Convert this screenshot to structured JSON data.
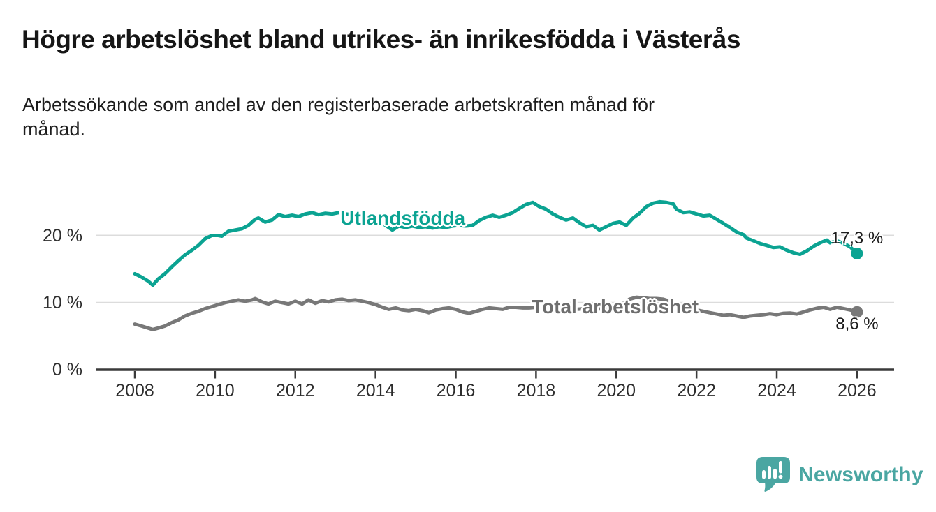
{
  "header": {
    "title": "Högre arbetslöshet bland utrikes- än inrikesfödda i Västerås",
    "subtitle_lines": [
      "Arbetssökande som andel av den registerbaserade arbetskraften månad för",
      "månad."
    ]
  },
  "theme": {
    "teal": "#0ba392",
    "gray": "#787878",
    "gray_label": "#6e6e6e",
    "gridline": "#dcdcdc",
    "axis": "#3a3a3a",
    "text_dark": "#1d1d1d",
    "logo_teal": "#4aa6a2"
  },
  "footer": {
    "brand": "Newsworthy",
    "logo_icon": "bar-chart-speech-bubble-icon"
  },
  "chart_data": {
    "type": "line",
    "unit": "%",
    "grid": true,
    "x_axis": {
      "base_year": 2008,
      "ticks": [
        2008,
        2010,
        2012,
        2014,
        2016,
        2018,
        2020,
        2022,
        2024,
        2026
      ],
      "range": [
        2007,
        2026.9
      ]
    },
    "y_axis": {
      "ticks": [
        {
          "value": 0,
          "label": "0 %"
        },
        {
          "value": 10,
          "label": "10 %"
        },
        {
          "value": 20,
          "label": "20 %"
        }
      ],
      "gridlines": [
        10,
        20
      ],
      "range": [
        0,
        27
      ]
    },
    "series": [
      {
        "id": "utlandsfodda",
        "name": "Utlandsfödda",
        "color": "#0ba392",
        "label_at": [
          2014.68,
          22.5
        ],
        "end_label": "17,3 %",
        "end_value": 17.3,
        "end_label_side": "above",
        "points": [
          [
            2008.0,
            14.3
          ],
          [
            2008.17,
            13.8
          ],
          [
            2008.33,
            13.2
          ],
          [
            2008.45,
            12.6
          ],
          [
            2008.58,
            13.5
          ],
          [
            2008.75,
            14.3
          ],
          [
            2008.92,
            15.3
          ],
          [
            2009.08,
            16.2
          ],
          [
            2009.25,
            17.1
          ],
          [
            2009.42,
            17.8
          ],
          [
            2009.58,
            18.5
          ],
          [
            2009.75,
            19.5
          ],
          [
            2009.92,
            20.0
          ],
          [
            2010.08,
            20.0
          ],
          [
            2010.17,
            19.9
          ],
          [
            2010.33,
            20.6
          ],
          [
            2010.5,
            20.8
          ],
          [
            2010.67,
            21.0
          ],
          [
            2010.83,
            21.5
          ],
          [
            2011.0,
            22.4
          ],
          [
            2011.08,
            22.6
          ],
          [
            2011.25,
            22.0
          ],
          [
            2011.42,
            22.3
          ],
          [
            2011.58,
            23.1
          ],
          [
            2011.75,
            22.8
          ],
          [
            2011.92,
            23.0
          ],
          [
            2012.08,
            22.8
          ],
          [
            2012.25,
            23.2
          ],
          [
            2012.42,
            23.4
          ],
          [
            2012.58,
            23.1
          ],
          [
            2012.75,
            23.3
          ],
          [
            2012.92,
            23.2
          ],
          [
            2013.08,
            23.4
          ],
          [
            2013.25,
            23.2
          ],
          [
            2013.42,
            23.1
          ],
          [
            2013.58,
            22.9
          ],
          [
            2013.75,
            22.7
          ],
          [
            2013.92,
            22.5
          ],
          [
            2014.08,
            22.2
          ],
          [
            2014.25,
            21.5
          ],
          [
            2014.42,
            20.8
          ],
          [
            2014.58,
            21.4
          ],
          [
            2014.75,
            21.2
          ],
          [
            2014.92,
            21.4
          ],
          [
            2015.08,
            21.2
          ],
          [
            2015.25,
            21.3
          ],
          [
            2015.42,
            21.1
          ],
          [
            2015.58,
            21.3
          ],
          [
            2015.75,
            21.2
          ],
          [
            2015.92,
            21.4
          ],
          [
            2016.08,
            21.5
          ],
          [
            2016.25,
            21.4
          ],
          [
            2016.42,
            21.5
          ],
          [
            2016.58,
            22.2
          ],
          [
            2016.75,
            22.7
          ],
          [
            2016.92,
            23.0
          ],
          [
            2017.08,
            22.7
          ],
          [
            2017.25,
            23.0
          ],
          [
            2017.42,
            23.4
          ],
          [
            2017.58,
            24.0
          ],
          [
            2017.75,
            24.6
          ],
          [
            2017.92,
            24.9
          ],
          [
            2018.08,
            24.3
          ],
          [
            2018.25,
            23.9
          ],
          [
            2018.42,
            23.2
          ],
          [
            2018.58,
            22.7
          ],
          [
            2018.75,
            22.3
          ],
          [
            2018.92,
            22.6
          ],
          [
            2019.08,
            21.9
          ],
          [
            2019.25,
            21.3
          ],
          [
            2019.42,
            21.5
          ],
          [
            2019.58,
            20.8
          ],
          [
            2019.75,
            21.3
          ],
          [
            2019.92,
            21.8
          ],
          [
            2020.08,
            22.0
          ],
          [
            2020.25,
            21.5
          ],
          [
            2020.42,
            22.6
          ],
          [
            2020.58,
            23.3
          ],
          [
            2020.75,
            24.3
          ],
          [
            2020.92,
            24.8
          ],
          [
            2021.08,
            25.0
          ],
          [
            2021.25,
            24.9
          ],
          [
            2021.42,
            24.7
          ],
          [
            2021.5,
            23.9
          ],
          [
            2021.67,
            23.4
          ],
          [
            2021.83,
            23.5
          ],
          [
            2022.0,
            23.2
          ],
          [
            2022.17,
            22.9
          ],
          [
            2022.33,
            23.0
          ],
          [
            2022.5,
            22.4
          ],
          [
            2022.67,
            21.8
          ],
          [
            2022.83,
            21.2
          ],
          [
            2023.0,
            20.5
          ],
          [
            2023.17,
            20.1
          ],
          [
            2023.25,
            19.6
          ],
          [
            2023.42,
            19.2
          ],
          [
            2023.58,
            18.8
          ],
          [
            2023.75,
            18.5
          ],
          [
            2023.92,
            18.2
          ],
          [
            2024.08,
            18.3
          ],
          [
            2024.25,
            17.8
          ],
          [
            2024.42,
            17.4
          ],
          [
            2024.58,
            17.2
          ],
          [
            2024.75,
            17.7
          ],
          [
            2024.92,
            18.4
          ],
          [
            2025.08,
            18.9
          ],
          [
            2025.25,
            19.3
          ],
          [
            2025.33,
            18.9
          ],
          [
            2025.5,
            19.2
          ],
          [
            2025.67,
            18.8
          ],
          [
            2025.83,
            18.3
          ],
          [
            2026.0,
            17.3
          ]
        ]
      },
      {
        "id": "total-arbetsloshet",
        "name": "Total arbetslöshet",
        "color": "#787878",
        "label_color": "#6e6e6e",
        "label_at": [
          2019.97,
          9.35
        ],
        "end_label": "8,6 %",
        "end_value": 8.6,
        "end_label_side": "below",
        "points": [
          [
            2008.0,
            6.8
          ],
          [
            2008.17,
            6.5
          ],
          [
            2008.33,
            6.2
          ],
          [
            2008.45,
            6.0
          ],
          [
            2008.58,
            6.2
          ],
          [
            2008.75,
            6.5
          ],
          [
            2008.92,
            7.0
          ],
          [
            2009.08,
            7.4
          ],
          [
            2009.25,
            8.0
          ],
          [
            2009.42,
            8.4
          ],
          [
            2009.58,
            8.7
          ],
          [
            2009.75,
            9.1
          ],
          [
            2009.92,
            9.4
          ],
          [
            2010.08,
            9.7
          ],
          [
            2010.25,
            10.0
          ],
          [
            2010.42,
            10.2
          ],
          [
            2010.58,
            10.4
          ],
          [
            2010.75,
            10.2
          ],
          [
            2010.92,
            10.4
          ],
          [
            2011.0,
            10.6
          ],
          [
            2011.17,
            10.1
          ],
          [
            2011.33,
            9.8
          ],
          [
            2011.5,
            10.2
          ],
          [
            2011.67,
            10.0
          ],
          [
            2011.83,
            9.8
          ],
          [
            2012.0,
            10.2
          ],
          [
            2012.17,
            9.8
          ],
          [
            2012.33,
            10.4
          ],
          [
            2012.5,
            9.9
          ],
          [
            2012.67,
            10.3
          ],
          [
            2012.83,
            10.1
          ],
          [
            2013.0,
            10.4
          ],
          [
            2013.17,
            10.5
          ],
          [
            2013.33,
            10.3
          ],
          [
            2013.5,
            10.4
          ],
          [
            2013.67,
            10.2
          ],
          [
            2013.83,
            10.0
          ],
          [
            2014.0,
            9.7
          ],
          [
            2014.17,
            9.3
          ],
          [
            2014.33,
            9.0
          ],
          [
            2014.5,
            9.2
          ],
          [
            2014.67,
            8.9
          ],
          [
            2014.83,
            8.8
          ],
          [
            2015.0,
            9.0
          ],
          [
            2015.17,
            8.8
          ],
          [
            2015.33,
            8.5
          ],
          [
            2015.5,
            8.9
          ],
          [
            2015.67,
            9.1
          ],
          [
            2015.83,
            9.2
          ],
          [
            2016.0,
            9.0
          ],
          [
            2016.17,
            8.6
          ],
          [
            2016.33,
            8.4
          ],
          [
            2016.5,
            8.7
          ],
          [
            2016.67,
            9.0
          ],
          [
            2016.83,
            9.2
          ],
          [
            2017.0,
            9.1
          ],
          [
            2017.17,
            9.0
          ],
          [
            2017.33,
            9.3
          ],
          [
            2017.5,
            9.3
          ],
          [
            2017.67,
            9.2
          ],
          [
            2017.83,
            9.2
          ],
          [
            2018.0,
            9.3
          ],
          [
            2018.25,
            9.1
          ],
          [
            2018.5,
            9.2
          ],
          [
            2018.75,
            9.0
          ],
          [
            2019.0,
            9.0
          ],
          [
            2019.25,
            9.1
          ],
          [
            2019.5,
            9.0
          ],
          [
            2019.75,
            9.2
          ],
          [
            2020.0,
            9.5
          ],
          [
            2020.17,
            9.9
          ],
          [
            2020.33,
            10.5
          ],
          [
            2020.5,
            10.8
          ],
          [
            2020.67,
            10.7
          ],
          [
            2020.83,
            10.6
          ],
          [
            2021.0,
            10.6
          ],
          [
            2021.17,
            10.5
          ],
          [
            2021.33,
            10.2
          ],
          [
            2021.5,
            9.8
          ],
          [
            2021.67,
            9.5
          ],
          [
            2021.83,
            9.2
          ],
          [
            2022.0,
            8.9
          ],
          [
            2022.17,
            8.7
          ],
          [
            2022.33,
            8.5
          ],
          [
            2022.5,
            8.3
          ],
          [
            2022.67,
            8.1
          ],
          [
            2022.83,
            8.2
          ],
          [
            2023.0,
            8.0
          ],
          [
            2023.17,
            7.8
          ],
          [
            2023.33,
            8.0
          ],
          [
            2023.5,
            8.1
          ],
          [
            2023.67,
            8.2
          ],
          [
            2023.83,
            8.35
          ],
          [
            2024.0,
            8.2
          ],
          [
            2024.17,
            8.4
          ],
          [
            2024.33,
            8.45
          ],
          [
            2024.5,
            8.3
          ],
          [
            2024.67,
            8.6
          ],
          [
            2024.83,
            8.9
          ],
          [
            2025.0,
            9.15
          ],
          [
            2025.17,
            9.3
          ],
          [
            2025.33,
            9.0
          ],
          [
            2025.5,
            9.3
          ],
          [
            2025.67,
            9.1
          ],
          [
            2025.83,
            8.9
          ],
          [
            2026.0,
            8.6
          ]
        ]
      }
    ]
  }
}
